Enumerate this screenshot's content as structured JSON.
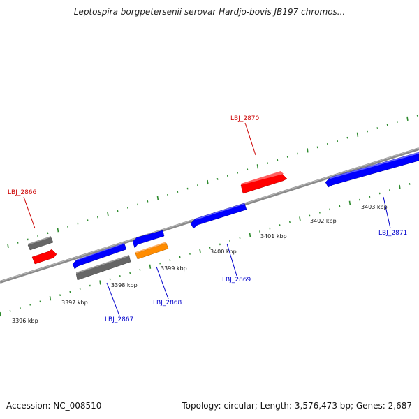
{
  "title": "Leptospira borgpetersenii serovar Hardjo-bovis JB197 chromos...",
  "footer": {
    "accession": "Accession: NC_008510",
    "summary": "Topology: circular; Length: 3,576,473 bp; Genes: 2,687"
  },
  "colors": {
    "backbone": "#8a8a8a",
    "tick": "#2e8b2e",
    "forward_gene": "#ff0000",
    "reverse_gene": "#0000ff",
    "label_forward": "#cc0000",
    "label_reverse": "#0000cc",
    "gray_feature": "#666666",
    "orange_feature": "#ff8c00"
  },
  "scale_labels": [
    "3396 kbp",
    "3397 kbp",
    "3398 kbp",
    "3399 kbp",
    "3400 kbp",
    "3401 kbp",
    "3402 kbp",
    "3403 kbp"
  ],
  "gene_labels": [
    {
      "text": "LBJ_2866",
      "strand": "forward"
    },
    {
      "text": "LBJ_2870",
      "strand": "forward"
    },
    {
      "text": "LBJ_2867",
      "strand": "reverse"
    },
    {
      "text": "LBJ_2868",
      "strand": "reverse"
    },
    {
      "text": "LBJ_2869",
      "strand": "reverse"
    },
    {
      "text": "LBJ_2871",
      "strand": "reverse"
    }
  ]
}
